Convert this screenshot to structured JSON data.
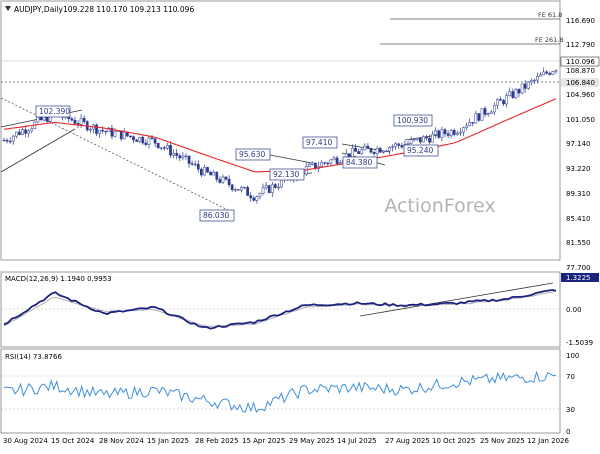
{
  "header": {
    "symbol": "AUDJPY,Daily",
    "ohlc": "109.228 110.170 109.213 110.096"
  },
  "watermark": "ActionForex",
  "colors": {
    "candles": "#2b3a8c",
    "ma": "#e8262a",
    "macd": "#1a237e",
    "signal": "#b0b0b0",
    "rsi": "#3f8fd8",
    "fib": "#555555",
    "frame": "#9a9a9a",
    "label_border": "#2b3a8c",
    "price_tag": "#e6e6e6",
    "macd_tag": "#1a237e"
  },
  "price_panel": {
    "axis_ticks": [
      "116.690",
      "112.790",
      "108.870",
      "104.960",
      "101.050",
      "97.140",
      "93.220",
      "89.310",
      "85.410",
      "81.550",
      "77.700"
    ],
    "current_price": "110.096",
    "level_price": "106.840",
    "fib_labels": [
      "FE 61.8",
      "FE 261.8"
    ],
    "level_labels": [
      "102.390",
      "95.630",
      "97.410",
      "92.130",
      "86.030",
      "84.380",
      "100.930",
      "95.240"
    ]
  },
  "macd_panel": {
    "title": "MACD(12,26,9) 1.1940 0.9953",
    "axis_ticks": [
      "1.3225",
      "0.00",
      "-1.5039"
    ]
  },
  "rsi_panel": {
    "title": "RSI(14) 73.8766",
    "axis_ticks": [
      "100",
      "70",
      "30",
      "0"
    ]
  },
  "x_axis": {
    "dates": [
      "30 Aug 2024",
      "15 Oct 2024",
      "28 Nov 2024",
      "15 Jan 2025",
      "28 Feb 2025",
      "15 Apr 2025",
      "29 May 2025",
      "14 Jul 2025",
      "27 Aug 2025",
      "10 Oct 2025",
      "25 Nov 2025",
      "12 Jan 2026"
    ]
  },
  "chart_data": {
    "type": "line",
    "title": "AUDJPY,Daily",
    "x": [
      "30 Aug 2024",
      "15 Oct 2024",
      "28 Nov 2024",
      "15 Jan 2025",
      "28 Feb 2025",
      "15 Apr 2025",
      "29 May 2025",
      "14 Jul 2025",
      "27 Aug 2025",
      "10 Oct 2025",
      "25 Nov 2025",
      "12 Jan 2026"
    ],
    "ylim": [
      77.7,
      116.69
    ],
    "series": [
      {
        "name": "AUDJPY",
        "values": [
          97.8,
          102.0,
          99.2,
          97.6,
          92.7,
          89.0,
          93.2,
          95.9,
          97.2,
          99.4,
          104.3,
          109.3
        ]
      }
    ],
    "moving_average": [
      99.5,
      100.6,
      99.7,
      98.3,
      95.5,
      92.8,
      93.1,
      94.4,
      95.8,
      97.4,
      100.9,
      104.3
    ],
    "macd": {
      "ylim": [
        -1.5039,
        1.3225
      ],
      "macd": [
        -0.6,
        0.9,
        -0.1,
        0.2,
        -0.8,
        -0.5,
        0.3,
        0.4,
        0.3,
        0.4,
        0.6,
        1.05
      ],
      "signal": [
        -0.7,
        0.7,
        0.0,
        0.1,
        -0.7,
        -0.6,
        0.2,
        0.35,
        0.3,
        0.35,
        0.55,
        0.95
      ]
    },
    "rsi": {
      "ylim": [
        0,
        100
      ],
      "values": [
        52,
        60,
        48,
        54,
        41,
        30,
        55,
        58,
        55,
        65,
        70,
        73.9
      ]
    },
    "grid": false
  }
}
